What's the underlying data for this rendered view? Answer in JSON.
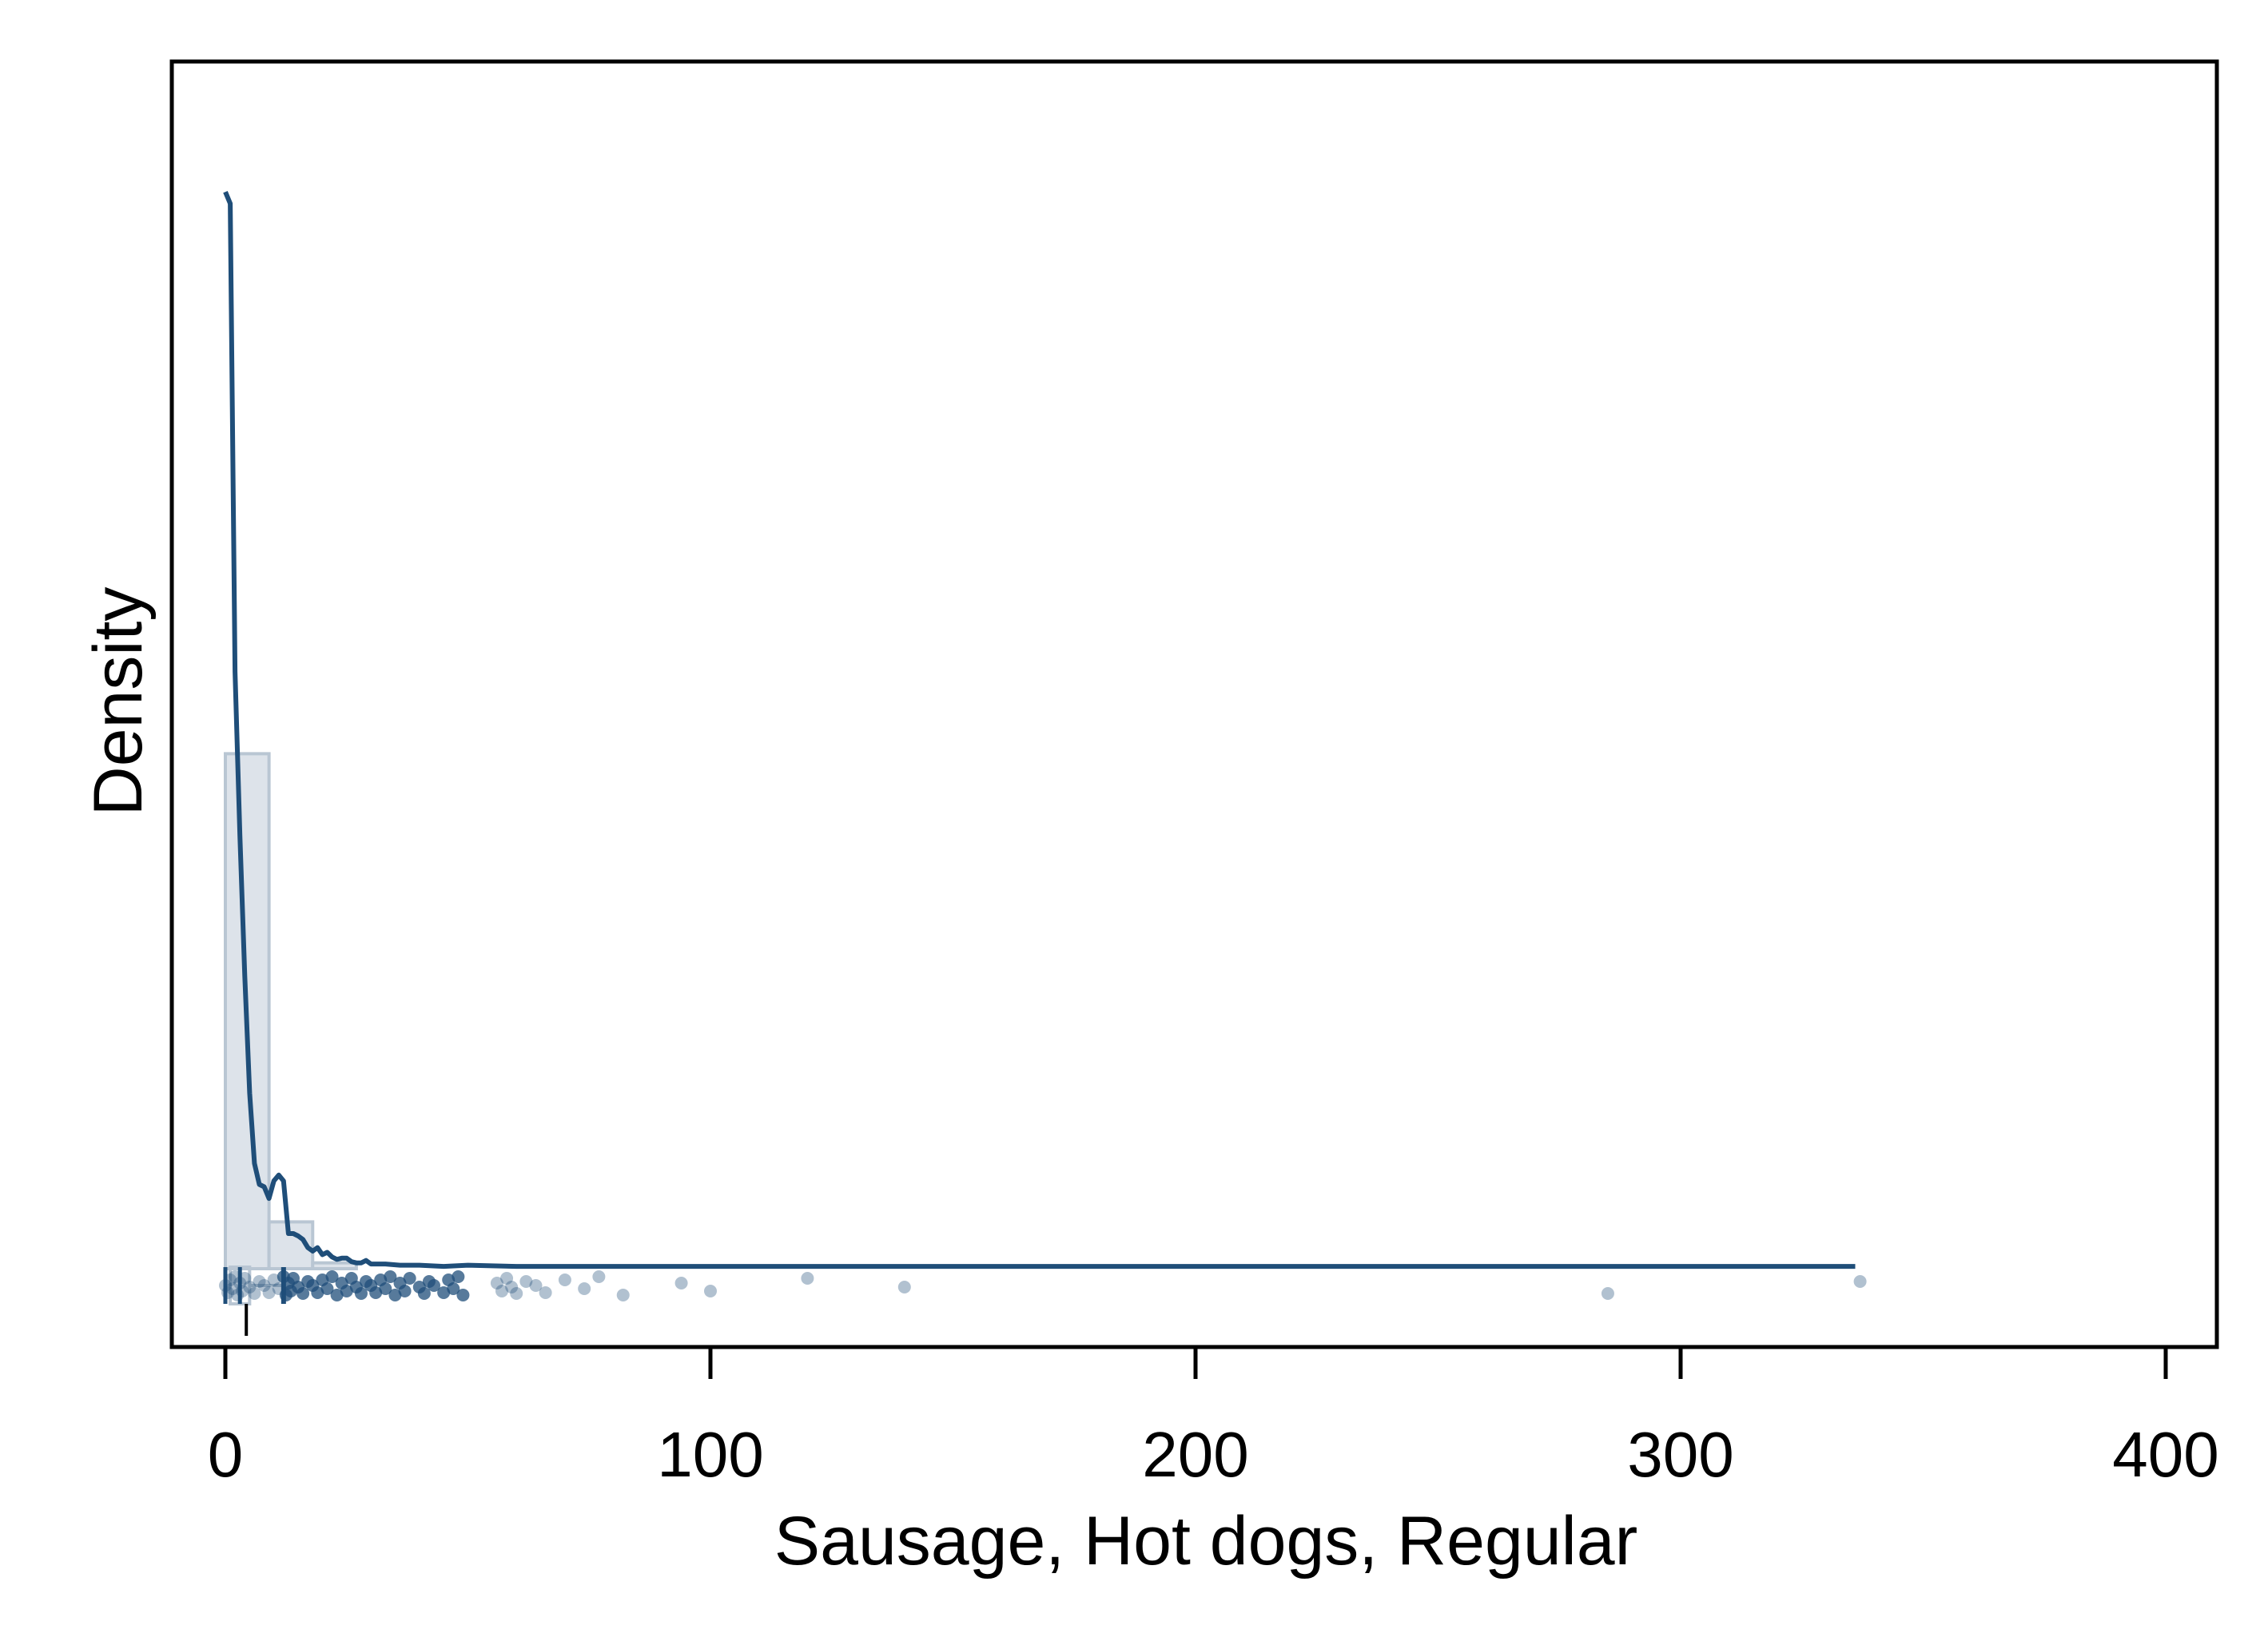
{
  "chart_data": {
    "type": "histogram",
    "xlabel": "Sausage, Hot dogs, Regular",
    "ylabel": "Density",
    "xlim": [
      -11,
      410
    ],
    "xticks": [
      0,
      100,
      200,
      300,
      400
    ],
    "y_ticks_labeled": false,
    "grid": false,
    "legend": "none",
    "colors": {
      "density_line": "#1f4e79",
      "histogram_fill": "#dde3ea",
      "histogram_edge": "#b9c6d3",
      "points": "#1f4e79",
      "frame": "#000000"
    },
    "histogram": {
      "bin_width": 9,
      "bins": [
        {
          "x0": 0,
          "x1": 9,
          "height": 0.44
        },
        {
          "x0": 9,
          "x1": 18,
          "height": 0.04
        },
        {
          "x0": 18,
          "x1": 27,
          "height": 0.005
        }
      ]
    },
    "density_curve": {
      "x": [
        0,
        1,
        2,
        3,
        4,
        5,
        6,
        7,
        8,
        9,
        10,
        11,
        12,
        13,
        14,
        15,
        16,
        17,
        18,
        19,
        20,
        21,
        22,
        23,
        24,
        25,
        26,
        27,
        28,
        29,
        30,
        33,
        36,
        40,
        45,
        50,
        60,
        80,
        100,
        150,
        200,
        250,
        285,
        300,
        336
      ],
      "y": [
        0.92,
        0.91,
        0.51,
        0.37,
        0.25,
        0.15,
        0.09,
        0.072,
        0.07,
        0.06,
        0.075,
        0.08,
        0.075,
        0.03,
        0.03,
        0.028,
        0.025,
        0.018,
        0.015,
        0.018,
        0.012,
        0.014,
        0.01,
        0.008,
        0.009,
        0.009,
        0.006,
        0.005,
        0.005,
        0.007,
        0.004,
        0.004,
        0.003,
        0.003,
        0.002,
        0.003,
        0.002,
        0.002,
        0.002,
        0.002,
        0.002,
        0.002,
        0.002,
        0.002,
        0.002
      ]
    },
    "observations": {
      "x": [
        0,
        0.5,
        1,
        1.5,
        2,
        2.5,
        3,
        3.5,
        4,
        5,
        6,
        7,
        8,
        9,
        10,
        11,
        12,
        12.5,
        13,
        13.5,
        14,
        15,
        16,
        17,
        18,
        19,
        20,
        21,
        22,
        23,
        24,
        25,
        26,
        27,
        28,
        29,
        30,
        31,
        32,
        33,
        34,
        35,
        36,
        37,
        38,
        40,
        41,
        42,
        43,
        45,
        46,
        47,
        48,
        49,
        56,
        57,
        58,
        59,
        60,
        62,
        64,
        66,
        70,
        74,
        77,
        82,
        94,
        100,
        120,
        140,
        285,
        337
      ]
    },
    "box_summary": {
      "min": 0,
      "q1": 1,
      "median": 3,
      "q3": 5,
      "whisker_high": 12
    }
  }
}
